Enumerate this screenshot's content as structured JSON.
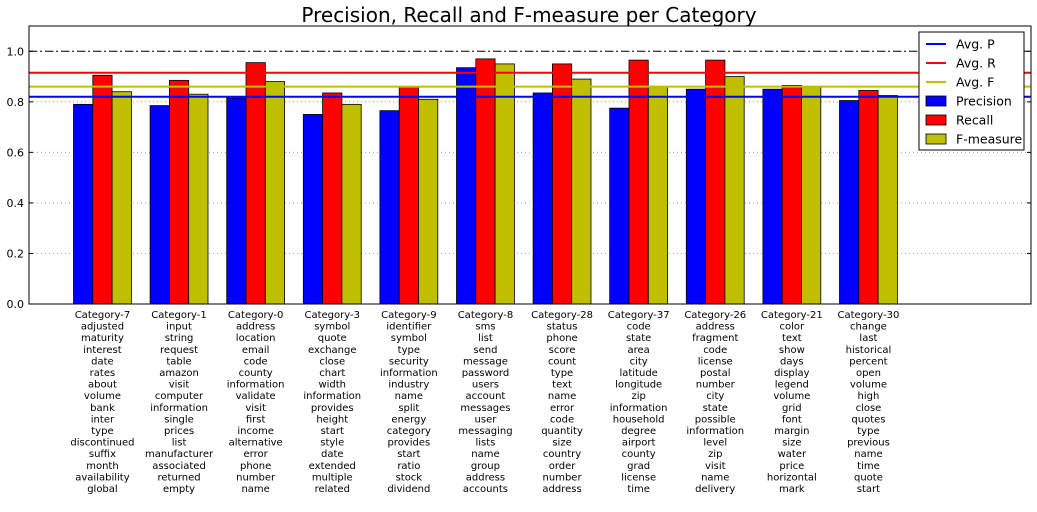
{
  "chart_data": {
    "type": "bar",
    "title": "Precision, Recall and F-measure per Category",
    "xlabel": "",
    "ylabel": "",
    "ylim": [
      0,
      1.1
    ],
    "yticks": [
      "0.0",
      "0.2",
      "0.4",
      "0.6",
      "0.8",
      "1.0"
    ],
    "grid": "horizontal dotted",
    "legend_position": "top-right",
    "categories": [
      {
        "name": "Category-7",
        "words": [
          "adjusted",
          "maturity",
          "interest",
          "date",
          "rates",
          "about",
          "volume",
          "bank",
          "inter",
          "type",
          "discontinued",
          "suffix",
          "month",
          "availability",
          "global"
        ]
      },
      {
        "name": "Category-1",
        "words": [
          "input",
          "string",
          "request",
          "table",
          "amazon",
          "visit",
          "computer",
          "information",
          "single",
          "prices",
          "list",
          "manufacturer",
          "associated",
          "returned",
          "empty"
        ]
      },
      {
        "name": "Category-0",
        "words": [
          "address",
          "location",
          "email",
          "code",
          "county",
          "information",
          "validate",
          "visit",
          "first",
          "income",
          "alternative",
          "error",
          "phone",
          "number",
          "name"
        ]
      },
      {
        "name": "Category-3",
        "words": [
          "symbol",
          "quote",
          "exchange",
          "close",
          "chart",
          "width",
          "information",
          "provides",
          "height",
          "start",
          "style",
          "date",
          "extended",
          "multiple",
          "related"
        ]
      },
      {
        "name": "Category-9",
        "words": [
          "identifier",
          "symbol",
          "type",
          "security",
          "information",
          "industry",
          "name",
          "split",
          "energy",
          "category",
          "provides",
          "start",
          "ratio",
          "stock",
          "dividend"
        ]
      },
      {
        "name": "Category-8",
        "words": [
          "sms",
          "list",
          "send",
          "message",
          "password",
          "users",
          "account",
          "messages",
          "user",
          "messaging",
          "lists",
          "name",
          "group",
          "address",
          "accounts"
        ]
      },
      {
        "name": "Category-28",
        "words": [
          "status",
          "phone",
          "score",
          "count",
          "type",
          "text",
          "name",
          "error",
          "code",
          "quantity",
          "size",
          "country",
          "order",
          "number",
          "address"
        ]
      },
      {
        "name": "Category-37",
        "words": [
          "code",
          "state",
          "area",
          "city",
          "latitude",
          "longitude",
          "zip",
          "information",
          "household",
          "degree",
          "airport",
          "county",
          "grad",
          "license",
          "time"
        ]
      },
      {
        "name": "Category-26",
        "words": [
          "address",
          "fragment",
          "code",
          "license",
          "postal",
          "number",
          "city",
          "state",
          "possible",
          "information",
          "level",
          "zip",
          "visit",
          "name",
          "delivery"
        ]
      },
      {
        "name": "Category-21",
        "words": [
          "color",
          "text",
          "show",
          "days",
          "display",
          "legend",
          "volume",
          "grid",
          "font",
          "margin",
          "size",
          "water",
          "price",
          "horizontal",
          "mark"
        ]
      },
      {
        "name": "Category-30",
        "words": [
          "change",
          "last",
          "historical",
          "percent",
          "open",
          "volume",
          "high",
          "close",
          "quotes",
          "type",
          "previous",
          "name",
          "time",
          "quote",
          "start"
        ]
      }
    ],
    "series": [
      {
        "name": "Precision",
        "color": "#0000ff",
        "values": [
          0.79,
          0.785,
          0.815,
          0.75,
          0.765,
          0.935,
          0.835,
          0.775,
          0.85,
          0.85,
          0.805
        ]
      },
      {
        "name": "Recall",
        "color": "#ff0000",
        "values": [
          0.905,
          0.885,
          0.955,
          0.835,
          0.86,
          0.97,
          0.95,
          0.965,
          0.965,
          0.865,
          0.845
        ]
      },
      {
        "name": "F-measure",
        "color": "#bfbf00",
        "values": [
          0.84,
          0.83,
          0.88,
          0.79,
          0.81,
          0.95,
          0.89,
          0.86,
          0.9,
          0.86,
          0.825
        ]
      }
    ],
    "reference_lines": [
      {
        "name": "Avg. P",
        "color": "#0000ff",
        "value": 0.82
      },
      {
        "name": "Avg. R",
        "color": "#ff0000",
        "value": 0.915
      },
      {
        "name": "Avg. F",
        "color": "#bfbf00",
        "value": 0.86
      }
    ],
    "extra_lines": [
      {
        "value": 1.0,
        "style": "dash-dot",
        "color": "#000000"
      }
    ],
    "legend": [
      "Avg. P",
      "Avg. R",
      "Avg. F",
      "Precision",
      "Recall",
      "F-measure"
    ]
  }
}
